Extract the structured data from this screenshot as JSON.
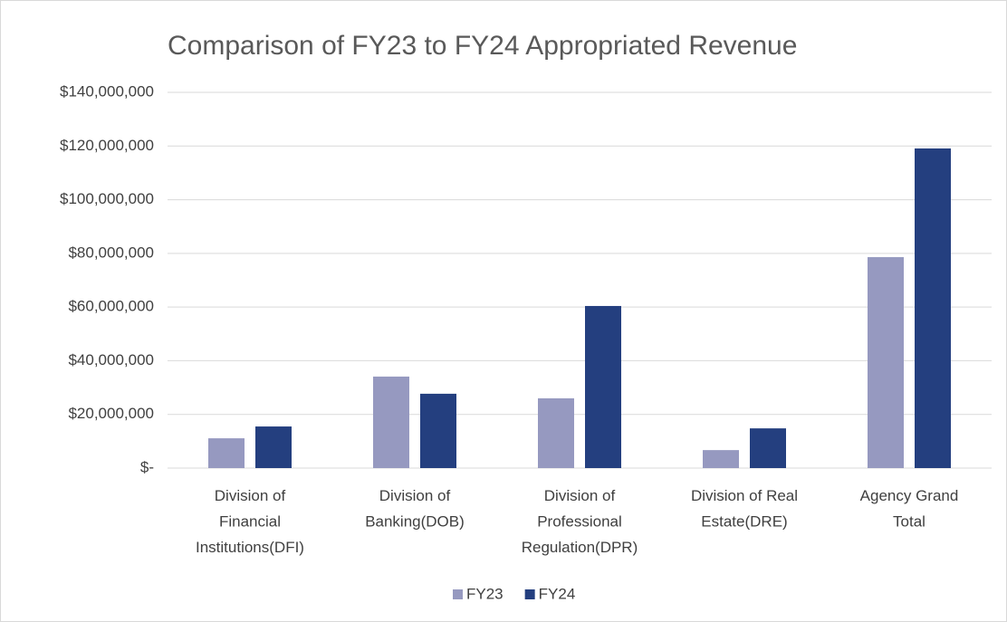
{
  "chart_data": {
    "type": "bar",
    "title": "Comparison of FY23 to FY24  Appropriated Revenue",
    "categories": [
      "Division of Financial Institutions(DFI)",
      "Division of Banking(DOB)",
      "Division of Professional Regulation(DPR)",
      "Division of Real Estate(DRE)",
      "Agency Grand Total"
    ],
    "series": [
      {
        "name": "FY23",
        "color": "#9699c0",
        "values": [
          11100000,
          34100000,
          26000000,
          6700000,
          78600000
        ]
      },
      {
        "name": "FY24",
        "color": "#243f7f",
        "values": [
          15500000,
          27700000,
          60400000,
          14800000,
          119100000
        ]
      }
    ],
    "ylim": [
      0,
      140000000
    ],
    "yticks": [
      {
        "value": 0,
        "label": "$-"
      },
      {
        "value": 20000000,
        "label": "$20,000,000"
      },
      {
        "value": 40000000,
        "label": "$40,000,000"
      },
      {
        "value": 60000000,
        "label": "$60,000,000"
      },
      {
        "value": 80000000,
        "label": "$80,000,000"
      },
      {
        "value": 100000000,
        "label": "$100,000,000"
      },
      {
        "value": 120000000,
        "label": "$120,000,000"
      },
      {
        "value": 140000000,
        "label": "$140,000,000"
      }
    ],
    "grid": true,
    "legend": "bottom"
  }
}
